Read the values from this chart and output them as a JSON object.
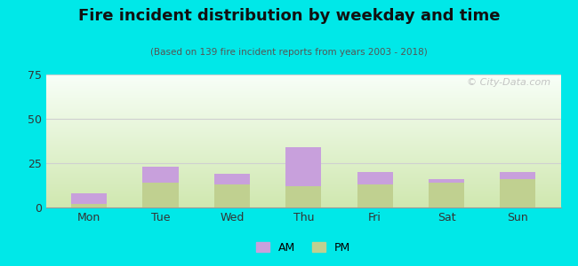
{
  "title": "Fire incident distribution by weekday and time",
  "subtitle": "(Based on 139 fire incident reports from years 2003 - 2018)",
  "categories": [
    "Mon",
    "Tue",
    "Wed",
    "Thu",
    "Fri",
    "Sat",
    "Sun"
  ],
  "am_values": [
    6,
    9,
    6,
    22,
    7,
    2,
    4
  ],
  "pm_values": [
    2,
    14,
    13,
    12,
    13,
    14,
    16
  ],
  "am_color": "#c8a0dc",
  "pm_color": "#c0d090",
  "ylim": [
    0,
    75
  ],
  "yticks": [
    0,
    25,
    50,
    75
  ],
  "background_color": "#00e8e8",
  "grid_color": "#d0d0d0",
  "watermark": "© City-Data.com",
  "bar_width": 0.5,
  "plot_bg_top": "#f8fff8",
  "plot_bg_bottom": "#d0e8b0"
}
